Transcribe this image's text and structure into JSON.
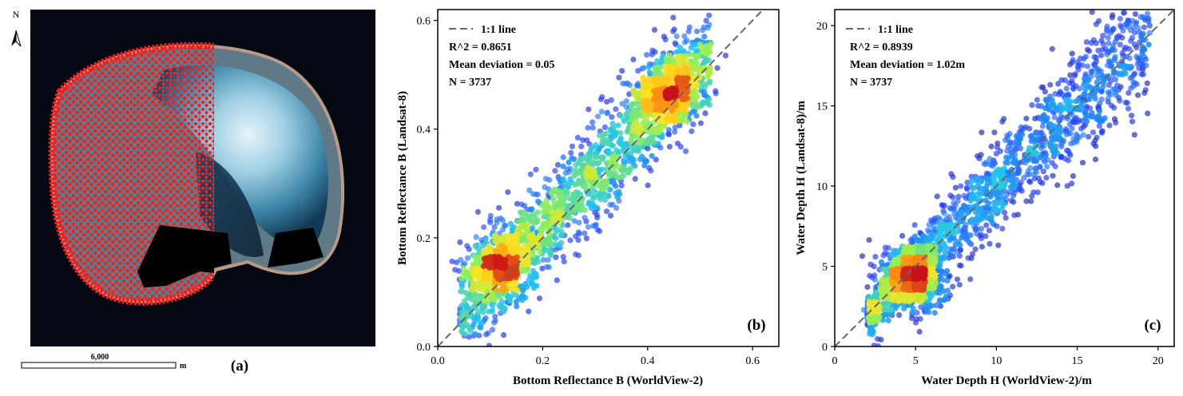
{
  "panel_a": {
    "label": "(a)",
    "north_label": "N",
    "scale_value": "6,000",
    "scale_unit": "m"
  },
  "chart_data": [
    {
      "type": "scatter",
      "panel_label": "(b)",
      "xlabel": "Bottom Reflectance B (WorldView-2)",
      "ylabel": "Bottom Reflectance B (Landsat-8)",
      "xlim": [
        0.0,
        0.65
      ],
      "ylim": [
        0.0,
        0.62
      ],
      "xticks": [
        "0.0",
        "0.2",
        "0.4",
        "0.6"
      ],
      "yticks": [
        "0.0",
        "0.2",
        "0.4",
        "0.6"
      ],
      "legend": {
        "label": "1:1 line",
        "position": "top-left"
      },
      "stats": {
        "r2": "R^2 = 0.8651",
        "mean_deviation": "Mean deviation = 0.05",
        "n": "N = 3737"
      },
      "n_points": 3737,
      "distribution": {
        "x_range": [
          0.04,
          0.52
        ],
        "clusters": [
          {
            "x": 0.12,
            "y": 0.15,
            "sd": 0.03
          },
          {
            "x": 0.44,
            "y": 0.47,
            "sd": 0.03
          }
        ],
        "slope": 1.0,
        "intercept": 0.02,
        "noise_sd": 0.045
      },
      "colormap": [
        "#10107a",
        "#1f3dff",
        "#22c3ee",
        "#8bef57",
        "#ffe21f",
        "#ff8a12",
        "#c8111a"
      ]
    },
    {
      "type": "scatter",
      "panel_label": "(c)",
      "xlabel": "Water Depth H (WorldView-2)/m",
      "ylabel": "Water Depth H (Landsat-8)/m",
      "xlim": [
        0,
        21
      ],
      "ylim": [
        0,
        21
      ],
      "xticks": [
        "0",
        "5",
        "10",
        "15",
        "20"
      ],
      "yticks": [
        "0",
        "5",
        "10",
        "15",
        "20"
      ],
      "legend": {
        "label": "1:1 line",
        "position": "top-left"
      },
      "stats": {
        "r2": "R^2 = 0.8939",
        "mean_deviation": "Mean deviation = 1.02m",
        "n": "N = 3737"
      },
      "n_points": 3737,
      "distribution": {
        "x_range": [
          2,
          19.5
        ],
        "clusters": [
          {
            "x": 4.8,
            "y": 4.3,
            "sd": 0.9
          }
        ],
        "slope": 1.0,
        "intercept": 0.0,
        "noise_sd": 1.6
      },
      "colormap": [
        "#10107a",
        "#1f3dff",
        "#22c3ee",
        "#8bef57",
        "#ffe21f",
        "#ff8a12",
        "#c8111a"
      ]
    }
  ]
}
